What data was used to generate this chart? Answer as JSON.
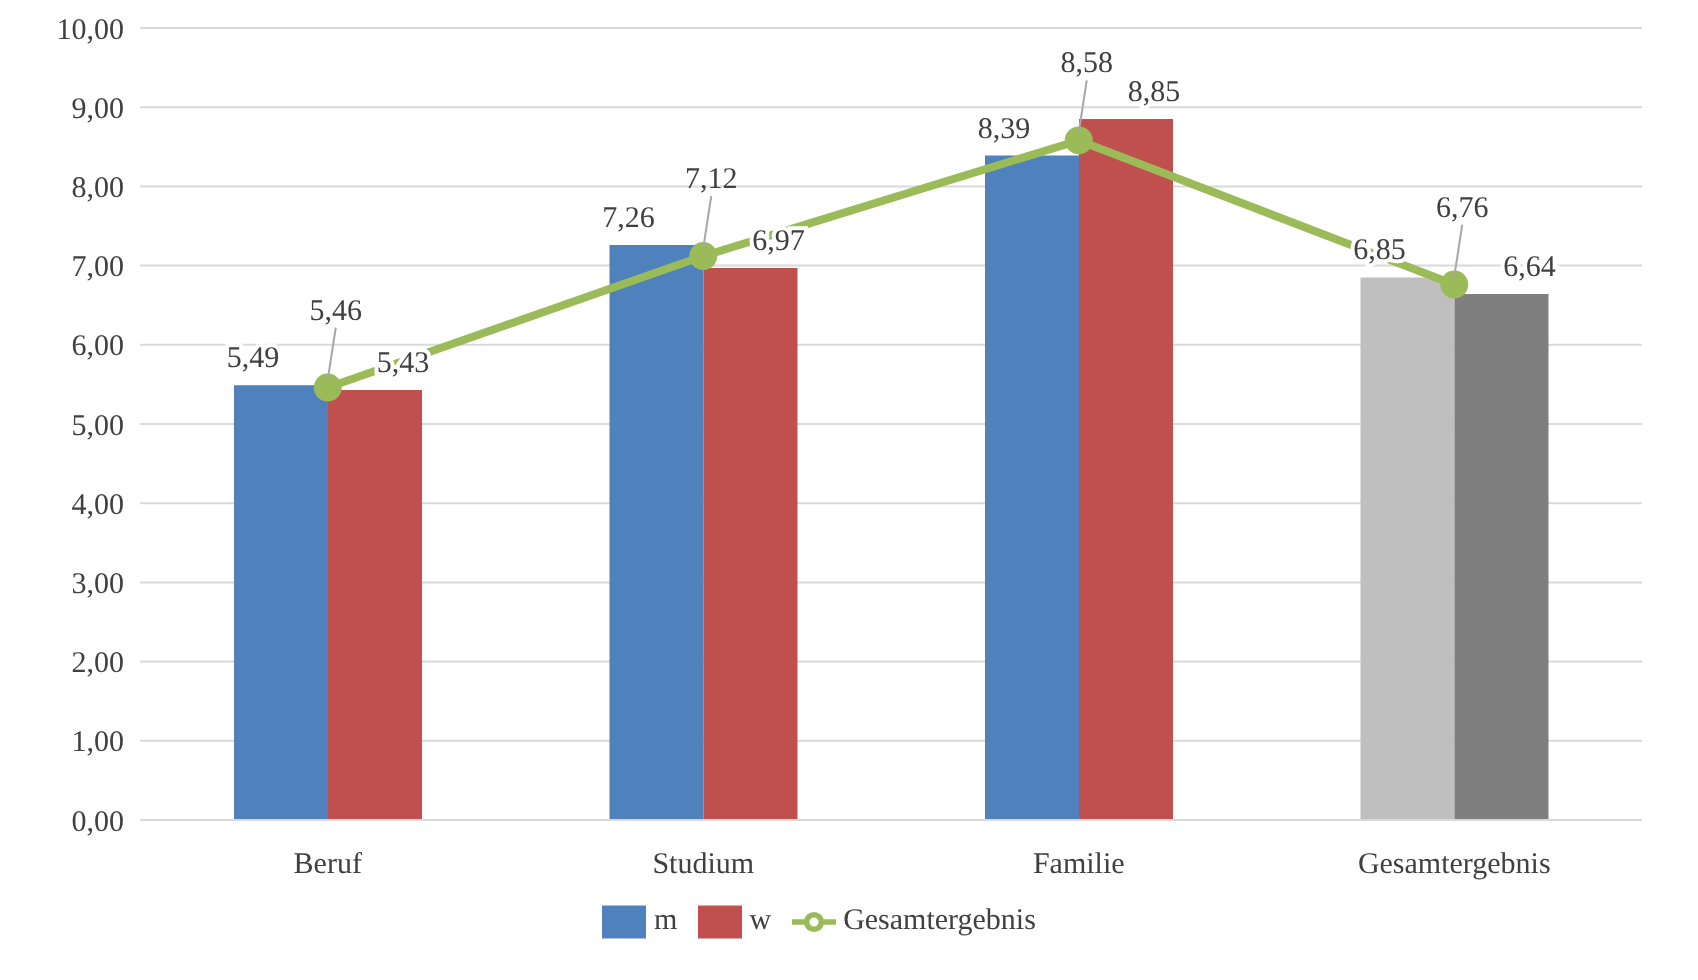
{
  "chart_data": {
    "type": "bar",
    "categories": [
      "Beruf",
      "Studium",
      "Familie",
      "Gesamtergebnis"
    ],
    "series": [
      {
        "name": "m",
        "color": "#4f81bd",
        "colors": [
          "#4f81bd",
          "#4f81bd",
          "#4f81bd",
          "#bfbfbf"
        ],
        "values": [
          5.49,
          7.26,
          8.39,
          6.85
        ],
        "value_labels": [
          "5,49",
          "7,26",
          "8,39",
          "6,85"
        ]
      },
      {
        "name": "w",
        "color": "#c0504d",
        "colors": [
          "#c0504d",
          "#c0504d",
          "#c0504d",
          "#7f7f7f"
        ],
        "values": [
          5.43,
          6.97,
          8.85,
          6.64
        ],
        "value_labels": [
          "5,43",
          "6,97",
          "8,85",
          "6,64"
        ]
      },
      {
        "name": "Gesamtergebnis",
        "type": "line",
        "color": "#9bbb59",
        "values": [
          5.46,
          7.12,
          8.58,
          6.76
        ],
        "value_labels": [
          "5,46",
          "7,12",
          "8,58",
          "6,76"
        ]
      }
    ],
    "ylim": [
      0,
      10
    ],
    "yticks": [
      {
        "value": 0,
        "label": "0,00"
      },
      {
        "value": 1,
        "label": "1,00"
      },
      {
        "value": 2,
        "label": "2,00"
      },
      {
        "value": 3,
        "label": "3,00"
      },
      {
        "value": 4,
        "label": "4,00"
      },
      {
        "value": 5,
        "label": "5,00"
      },
      {
        "value": 6,
        "label": "6,00"
      },
      {
        "value": 7,
        "label": "7,00"
      },
      {
        "value": 8,
        "label": "8,00"
      },
      {
        "value": 9,
        "label": "9,00"
      },
      {
        "value": 10,
        "label": "10,00"
      }
    ],
    "grid": "y",
    "legend": "bottom",
    "marker": "circle",
    "line_style": "solid"
  }
}
